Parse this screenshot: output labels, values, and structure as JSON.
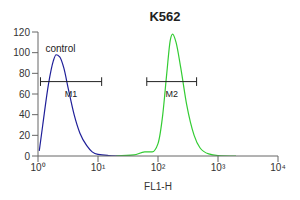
{
  "chart_data": {
    "type": "line",
    "title": "K562",
    "x_label": "FL1-H",
    "log": "x",
    "grid": false,
    "xlim": [
      1,
      10000
    ],
    "xticks": [
      {
        "value": 1,
        "label": "10⁰"
      },
      {
        "value": 10,
        "label": "10¹"
      },
      {
        "value": 100,
        "label": "10²"
      },
      {
        "value": 1000,
        "label": "10³"
      },
      {
        "value": 10000,
        "label": "10⁴"
      }
    ],
    "ylim": [
      0,
      120
    ],
    "yticks": [
      0,
      20,
      40,
      60,
      80,
      100,
      120
    ],
    "series": [
      {
        "name": "control",
        "color": "#1f1f99",
        "x": [
          1.05,
          1.2,
          1.5,
          1.8,
          2,
          2.3,
          2.7,
          3.2,
          4,
          5,
          6.5,
          8,
          10,
          15,
          30
        ],
        "values": [
          5,
          30,
          70,
          92,
          98,
          96,
          85,
          65,
          40,
          22,
          10,
          4,
          1.5,
          0.5,
          0
        ]
      },
      {
        "color": "#33cc33",
        "x": [
          20,
          40,
          60,
          80,
          100,
          120,
          140,
          160,
          175,
          200,
          240,
          300,
          400,
          500,
          700,
          1000,
          2000
        ],
        "values": [
          0,
          1,
          4,
          4,
          12,
          40,
          80,
          112,
          118,
          110,
          85,
          50,
          20,
          8,
          2,
          0.5,
          0
        ]
      }
    ],
    "annotations": [
      {
        "text": "control"
      }
    ],
    "gates": [
      {
        "label": "M1",
        "x": [
          1.1,
          11.5
        ],
        "y": 72
      },
      {
        "label": "M2",
        "x": [
          65,
          440
        ],
        "y": 72
      }
    ]
  }
}
